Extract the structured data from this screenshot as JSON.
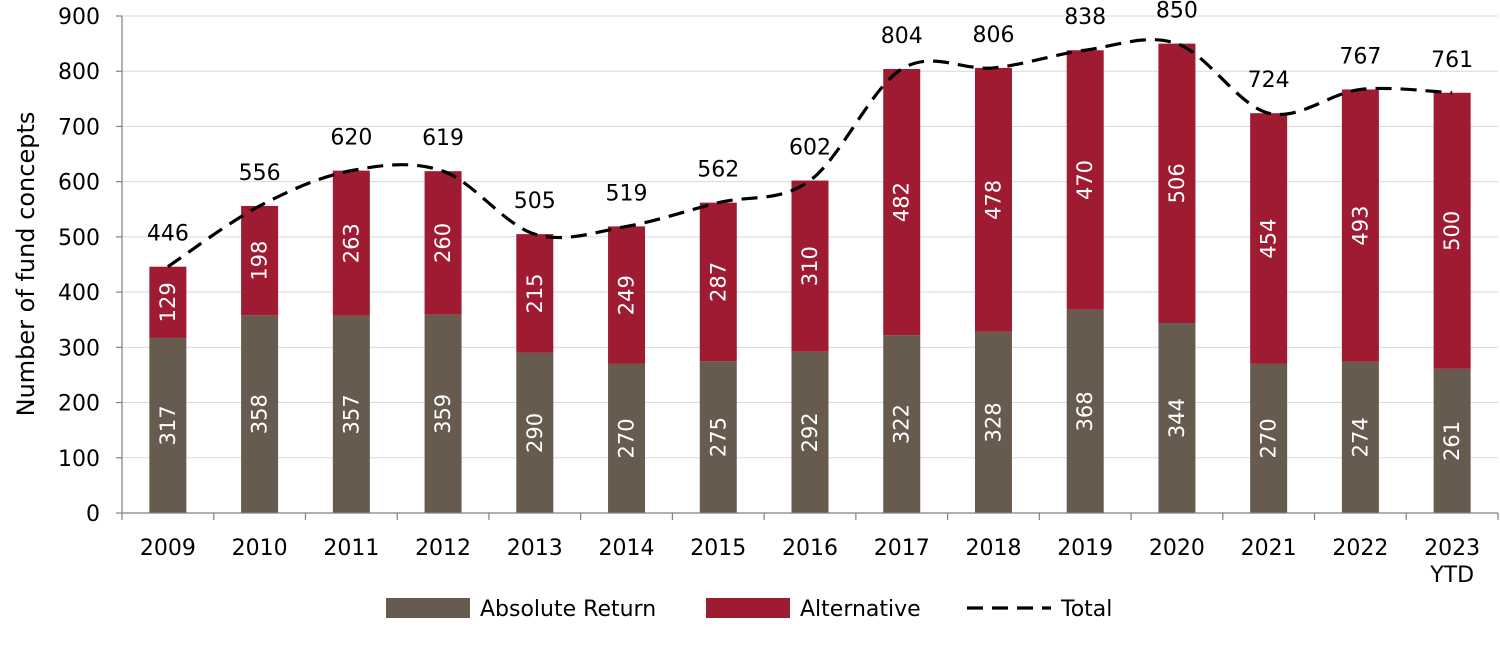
{
  "chart_data": {
    "type": "bar",
    "stacked": true,
    "title": "",
    "xlabel": "",
    "ylabel": "Number of fund concepts",
    "ylim": [
      0,
      900
    ],
    "yticks": [
      0,
      100,
      200,
      300,
      400,
      500,
      600,
      700,
      800,
      900
    ],
    "grid": true,
    "legend_position": "bottom",
    "categories": [
      [
        "2009"
      ],
      [
        "2010"
      ],
      [
        "2011"
      ],
      [
        "2012"
      ],
      [
        "2013"
      ],
      [
        "2014"
      ],
      [
        "2015"
      ],
      [
        "2016"
      ],
      [
        "2017"
      ],
      [
        "2018"
      ],
      [
        "2019"
      ],
      [
        "2020"
      ],
      [
        "2021"
      ],
      [
        "2022"
      ],
      [
        "2023",
        "YTD"
      ]
    ],
    "series": [
      {
        "name": "Absolute Return",
        "color": "#675a4e",
        "values": [
          317,
          358,
          357,
          359,
          290,
          270,
          275,
          292,
          322,
          328,
          368,
          344,
          270,
          274,
          261
        ]
      },
      {
        "name": "Alternative",
        "color": "#9e1b32",
        "values": [
          129,
          198,
          263,
          260,
          215,
          249,
          287,
          310,
          482,
          478,
          470,
          506,
          454,
          493,
          500
        ]
      }
    ],
    "totals": {
      "name": "Total",
      "style": "dashed-line",
      "color": "#000000",
      "values": [
        446,
        556,
        620,
        619,
        505,
        519,
        562,
        602,
        804,
        806,
        838,
        850,
        724,
        767,
        761
      ]
    }
  }
}
